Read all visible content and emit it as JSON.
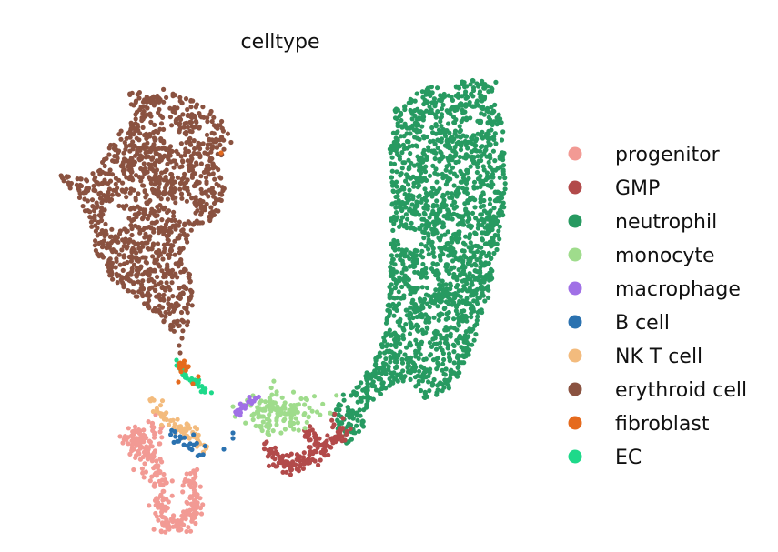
{
  "chart_data": {
    "type": "scatter",
    "title": "celltype",
    "xlabel": "",
    "ylabel": "",
    "grid": false,
    "axes_visible": false,
    "legend_position": "right",
    "legend": [
      {
        "name": "progenitor",
        "color": "#f29a94"
      },
      {
        "name": "GMP",
        "color": "#b24a4a"
      },
      {
        "name": "neutrophil",
        "color": "#279a61"
      },
      {
        "name": "monocyte",
        "color": "#9fdc8c"
      },
      {
        "name": "macrophage",
        "color": "#a070e6"
      },
      {
        "name": "B cell",
        "color": "#2b72b0"
      },
      {
        "name": "NK T cell",
        "color": "#f3bb7d"
      },
      {
        "name": "erythroid cell",
        "color": "#8a5240"
      },
      {
        "name": "fibroblast",
        "color": "#e56a1d"
      },
      {
        "name": "EC",
        "color": "#1ed98a"
      }
    ]
  }
}
